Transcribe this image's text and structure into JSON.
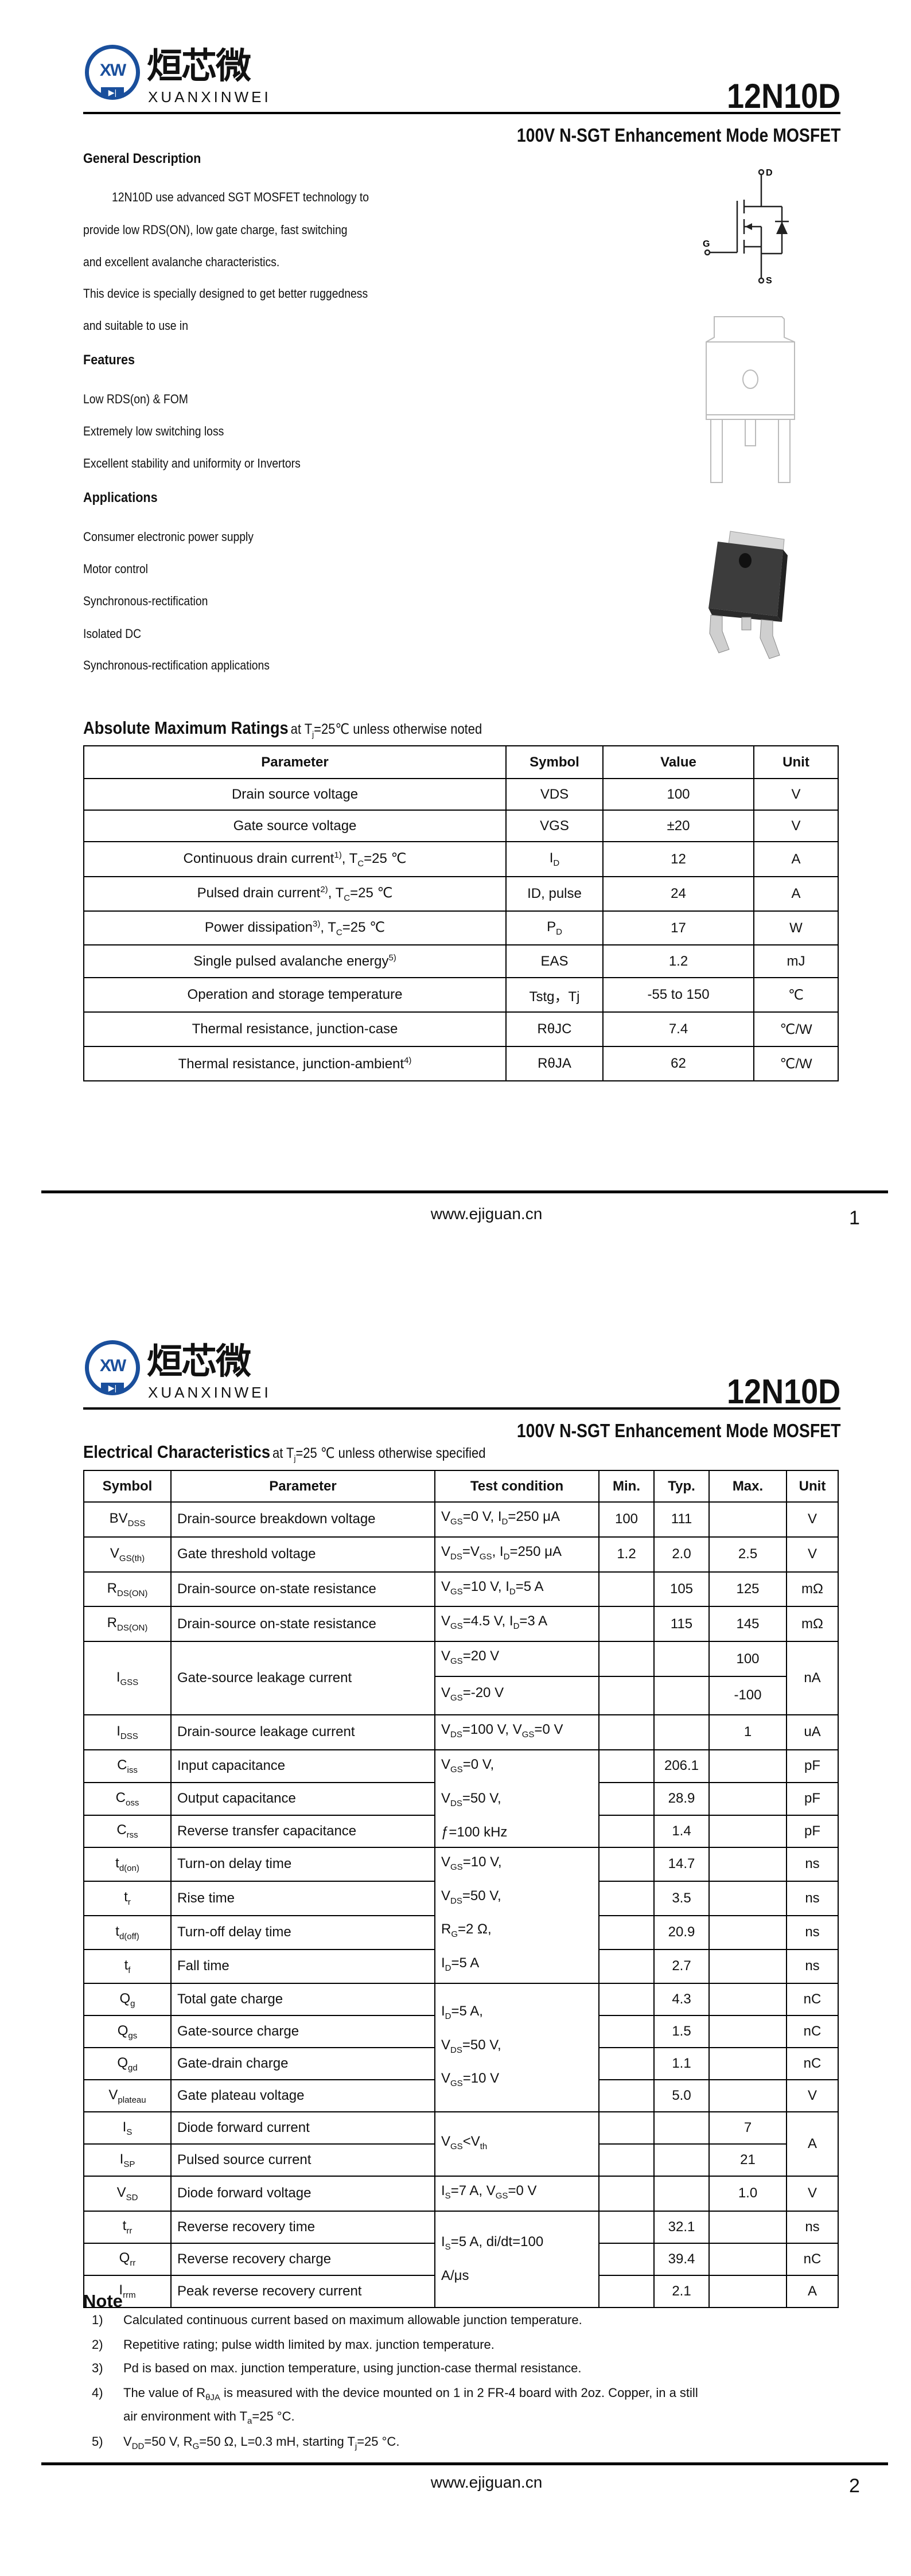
{
  "brand": {
    "logo_letters": "XW",
    "name_cn": "烜芯微",
    "name_en": "XUANXINWEI",
    "accent": "#1a4f9c"
  },
  "part_number": "12N10D",
  "subtitle": "100V N-SGT Enhancement Mode MOSFET",
  "page1": {
    "general_description": {
      "heading": "General Description",
      "lines": [
        "12N10D use advanced SGT  MOSFET technology to",
        "provide low RDS(ON), low gate charge, fast  switching",
        "and excellent avalanche characteristics.",
        "This device is specially designed to get better ruggedness",
        "and suitable to use in"
      ]
    },
    "features": {
      "heading": "Features",
      "items": [
        "Low RDS(on) & FOM",
        "Extremely low switching loss",
        "Excellent stability and uniformity or Invertors"
      ]
    },
    "applications": {
      "heading": "Applications",
      "items": [
        "Consumer electronic power supply",
        "Motor control",
        "Synchronous-rectification",
        "Isolated DC",
        "Synchronous-rectification applications"
      ]
    },
    "symbol_labels": {
      "drain": "D",
      "gate": "G",
      "source": "S"
    },
    "abs_max": {
      "title": "Absolute Maximum Ratings",
      "condition": "at T_{j}=25℃ unless otherwise noted",
      "headers": [
        "Parameter",
        "Symbol",
        "Value",
        "Unit"
      ],
      "rows": [
        [
          "Drain source voltage",
          "VDS",
          "100",
          "V"
        ],
        [
          "Gate source voltage",
          "VGS",
          "±20",
          "V"
        ],
        [
          "Continuous drain current^{1)}, T_{C}=25 ℃",
          "I_{D}",
          "12",
          "A"
        ],
        [
          "Pulsed drain current^{2)}, T_{C}=25 ℃",
          "ID, pulse",
          "24",
          "A"
        ],
        [
          "Power dissipation^{3)}, T_{C}=25 ℃",
          "P_{D}",
          "17",
          "W"
        ],
        [
          "Single pulsed avalanche energy^{5)}",
          "EAS",
          "1.2",
          "mJ"
        ],
        [
          "Operation and storage temperature",
          "Tstg，Tj",
          "-55 to 150",
          "℃"
        ],
        [
          "Thermal resistance, junction-case",
          "RθJC",
          "7.4",
          "℃/W"
        ],
        [
          "Thermal resistance, junction-ambient^{4)}",
          "RθJA",
          "62",
          "℃/W"
        ]
      ]
    },
    "footer": {
      "website": "www.ejiguan.cn",
      "page": "1"
    }
  },
  "page2": {
    "elec": {
      "title": "Electrical Characteristics",
      "condition": "at T_{j}=25 ℃ unless otherwise specified",
      "headers": [
        "Symbol",
        "Parameter",
        "Test condition",
        "Min.",
        "Typ.",
        "Max.",
        "Unit"
      ],
      "rows": [
        {
          "sym": "BV_{DSS}",
          "param": "Drain-source breakdown voltage",
          "cond": "V_{GS}=0 V, I_{D}=250 μA",
          "min": "100",
          "typ": "111",
          "max": "",
          "unit": "V"
        },
        {
          "sym": "V_{GS(th)}",
          "param": "Gate threshold voltage",
          "cond": "V_{DS}=V_{GS}, I_{D}=250 μA",
          "min": "1.2",
          "typ": "2.0",
          "max": "2.5",
          "unit": "V"
        },
        {
          "sym": "R_{DS(ON)}",
          "param": "Drain-source on-state resistance",
          "cond": "V_{GS}=10 V, I_{D}=5 A",
          "min": "",
          "typ": "105",
          "max": "125",
          "unit": "mΩ"
        },
        {
          "sym": "R_{DS(ON)}",
          "param": "Drain-source on-state resistance",
          "cond": "V_{GS}=4.5 V, I_{D}=3 A",
          "min": "",
          "typ": "115",
          "max": "145",
          "unit": "mΩ"
        },
        {
          "sym": "I_{GSS}",
          "param": "Gate-source leakage current",
          "cond": "V_{GS}=20 V",
          "min": "",
          "typ": "",
          "max": "100",
          "unit": "nA"
        },
        {
          "cond": "V_{GS}=-20 V",
          "min": "",
          "typ": "",
          "max": "-100"
        },
        {
          "sym": "I_{DSS}",
          "param": "Drain-source leakage current",
          "cond": "V_{DS}=100 V, V_{GS}=0 V",
          "min": "",
          "typ": "",
          "max": "1",
          "unit": "uA"
        },
        {
          "sym": "C_{iss}",
          "param": "Input capacitance",
          "cond": "V_{GS}=0 V,\nV_{DS}=50 V,\nƒ=100 kHz",
          "min": "",
          "typ": "206.1",
          "max": "",
          "unit": "pF"
        },
        {
          "sym": "C_{oss}",
          "param": "Output capacitance",
          "min": "",
          "typ": "28.9",
          "max": "",
          "unit": "pF"
        },
        {
          "sym": "C_{rss}",
          "param": "Reverse transfer capacitance",
          "min": "",
          "typ": "1.4",
          "max": "",
          "unit": "pF"
        },
        {
          "sym": "t_{d(on)}",
          "param": "Turn-on delay time",
          "cond": "V_{GS}=10 V,\nV_{DS}=50 V,\nR_{G}=2 Ω,\nI_{D}=5 A",
          "min": "",
          "typ": "14.7",
          "max": "",
          "unit": "ns"
        },
        {
          "sym": "t_{r}",
          "param": "Rise time",
          "min": "",
          "typ": "3.5",
          "max": "",
          "unit": "ns"
        },
        {
          "sym": "t_{d(off)}",
          "param": "Turn-off delay time",
          "min": "",
          "typ": "20.9",
          "max": "",
          "unit": "ns"
        },
        {
          "sym": "t_{f}",
          "param": "Fall time",
          "min": "",
          "typ": "2.7",
          "max": "",
          "unit": "ns"
        },
        {
          "sym": "Q_{g}",
          "param": "Total gate charge",
          "cond": "I_{D}=5 A,\nV_{DS}=50 V,\nV_{GS}=10 V",
          "min": "",
          "typ": "4.3",
          "max": "",
          "unit": "nC"
        },
        {
          "sym": "Q_{gs}",
          "param": "Gate-source charge",
          "min": "",
          "typ": "1.5",
          "max": "",
          "unit": "nC"
        },
        {
          "sym": "Q_{gd}",
          "param": "Gate-drain charge",
          "min": "",
          "typ": "1.1",
          "max": "",
          "unit": "nC"
        },
        {
          "sym": "V_{plateau}",
          "param": "Gate plateau voltage",
          "min": "",
          "typ": "5.0",
          "max": "",
          "unit": "V"
        },
        {
          "sym": "I_{S}",
          "param": "Diode forward current",
          "cond": "V_{GS}<V_{th}",
          "min": "",
          "typ": "",
          "max": "7",
          "unit": "A"
        },
        {
          "sym": "I_{SP}",
          "param": "Pulsed source current",
          "min": "",
          "typ": "",
          "max": "21"
        },
        {
          "sym": "V_{SD}",
          "param": "Diode forward voltage",
          "cond": "I_{S}=7 A, V_{GS}=0 V",
          "min": "",
          "typ": "",
          "max": "1.0",
          "unit": "V"
        },
        {
          "sym": "t_{rr}",
          "param": "Reverse recovery time",
          "cond": "I_{S}=5 A,  di/dt=100\nA/μs",
          "min": "",
          "typ": "32.1",
          "max": "",
          "unit": "ns"
        },
        {
          "sym": "Q_{rr}",
          "param": "Reverse recovery charge",
          "min": "",
          "typ": "39.4",
          "max": "",
          "unit": "nC"
        },
        {
          "sym": "I_{rrm}",
          "param": "Peak reverse recovery current",
          "min": "",
          "typ": "2.1",
          "max": "",
          "unit": "A"
        }
      ]
    },
    "notes": {
      "heading": "Note",
      "items": [
        {
          "n": "1)",
          "text": "Calculated continuous current based on maximum allowable junction temperature."
        },
        {
          "n": "2)",
          "text": "Repetitive rating; pulse width limited by max. junction temperature."
        },
        {
          "n": "3)",
          "text": "Pd is based on max. junction temperature, using junction-case thermal resistance."
        },
        {
          "n": "4)",
          "text": "The value of R_{θJA} is measured with the device mounted on 1 in 2 FR-4 board with 2oz. Copper, in a still"
        },
        {
          "n": "",
          "text": "air environment with T_{a}=25 °C."
        },
        {
          "n": "5)",
          "text": "V_{DD}=50 V, R_{G}=50 Ω, L=0.3 mH, starting T_{j}=25 °C."
        }
      ]
    },
    "footer": {
      "website": "www.ejiguan.cn",
      "page": "2"
    }
  }
}
